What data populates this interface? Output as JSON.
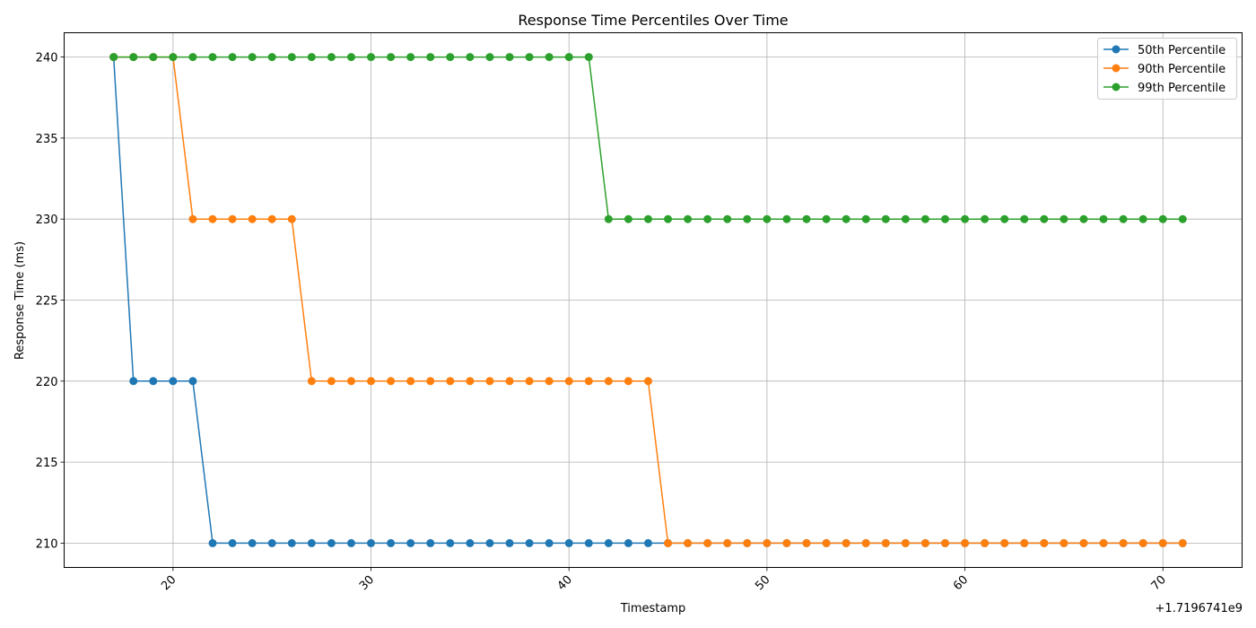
{
  "chart_data": {
    "type": "line",
    "title": "Response Time Percentiles Over Time",
    "xlabel": "Timestamp",
    "ylabel": "Response Time (ms)",
    "x_offset_label": "+1.7196741e9",
    "x_ticks": [
      "20",
      "30",
      "40",
      "50",
      "60",
      "70"
    ],
    "y_ticks": [
      "210",
      "215",
      "220",
      "225",
      "230",
      "235",
      "240"
    ],
    "xlim": [
      14.5,
      74
    ],
    "ylim": [
      208.5,
      241.5
    ],
    "grid": true,
    "legend_position": "top-right",
    "x": [
      17,
      18,
      19,
      20,
      21,
      22,
      23,
      24,
      25,
      26,
      27,
      28,
      29,
      30,
      31,
      32,
      33,
      34,
      35,
      36,
      37,
      38,
      39,
      40,
      41,
      42,
      43,
      44,
      45,
      46,
      47,
      48,
      49,
      50,
      51,
      52,
      53,
      54,
      55,
      56,
      57,
      58,
      59,
      60,
      61,
      62,
      63,
      64,
      65,
      66,
      67,
      68,
      69,
      70,
      71
    ],
    "series": [
      {
        "name": "50th Percentile",
        "color": "#1f77b4",
        "values": [
          240,
          220,
          220,
          220,
          220,
          210,
          210,
          210,
          210,
          210,
          210,
          210,
          210,
          210,
          210,
          210,
          210,
          210,
          210,
          210,
          210,
          210,
          210,
          210,
          210,
          210,
          210,
          210,
          210,
          210,
          210,
          210,
          210,
          210,
          210,
          210,
          210,
          210,
          210,
          210,
          210,
          210,
          210,
          210,
          210,
          210,
          210,
          210,
          210,
          210,
          210,
          210,
          210,
          210,
          210
        ]
      },
      {
        "name": "90th Percentile",
        "color": "#ff7f0e",
        "values": [
          240,
          240,
          240,
          240,
          230,
          230,
          230,
          230,
          230,
          230,
          220,
          220,
          220,
          220,
          220,
          220,
          220,
          220,
          220,
          220,
          220,
          220,
          220,
          220,
          220,
          220,
          220,
          220,
          210,
          210,
          210,
          210,
          210,
          210,
          210,
          210,
          210,
          210,
          210,
          210,
          210,
          210,
          210,
          210,
          210,
          210,
          210,
          210,
          210,
          210,
          210,
          210,
          210,
          210,
          210
        ]
      },
      {
        "name": "99th Percentile",
        "color": "#2ca02c",
        "values": [
          240,
          240,
          240,
          240,
          240,
          240,
          240,
          240,
          240,
          240,
          240,
          240,
          240,
          240,
          240,
          240,
          240,
          240,
          240,
          240,
          240,
          240,
          240,
          240,
          240,
          230,
          230,
          230,
          230,
          230,
          230,
          230,
          230,
          230,
          230,
          230,
          230,
          230,
          230,
          230,
          230,
          230,
          230,
          230,
          230,
          230,
          230,
          230,
          230,
          230,
          230,
          230,
          230,
          230,
          230
        ]
      }
    ]
  }
}
